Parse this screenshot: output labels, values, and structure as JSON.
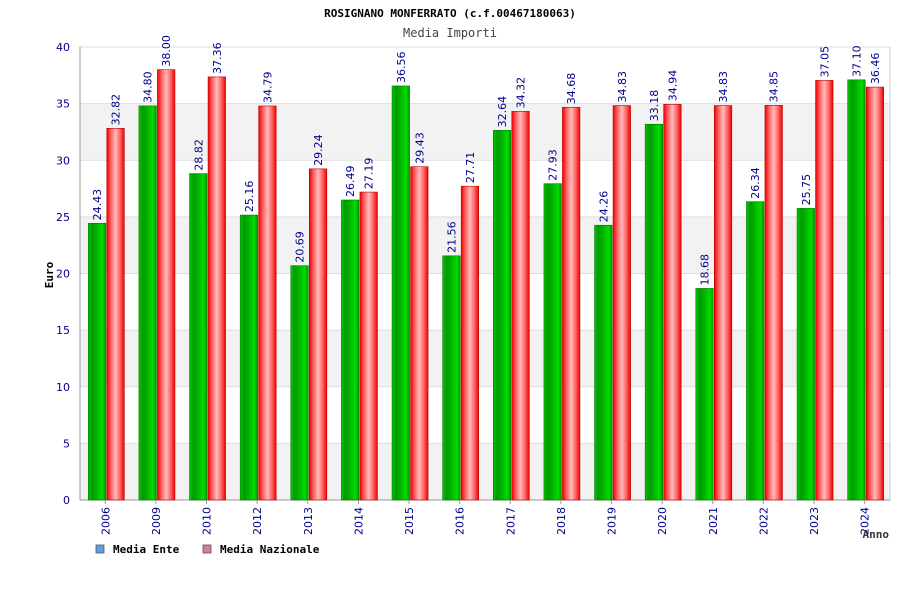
{
  "chart_data": {
    "type": "bar",
    "title": "ROSIGNANO MONFERRATO (c.f.00467180063)",
    "subtitle": "Media Importi",
    "xlabel": "Anno",
    "ylabel": "Euro",
    "ylim": [
      0,
      40
    ],
    "yticks": [
      0,
      5,
      10,
      15,
      20,
      25,
      30,
      35,
      40
    ],
    "grid": true,
    "legend_position": "bottom-left",
    "categories": [
      "2006",
      "2009",
      "2010",
      "2012",
      "2013",
      "2014",
      "2015",
      "2016",
      "2017",
      "2018",
      "2019",
      "2020",
      "2021",
      "2022",
      "2023",
      "2024"
    ],
    "series": [
      {
        "name": "Media Ente",
        "color": "#00aa00",
        "legend_color": "#5aa0e6",
        "values": [
          24.43,
          34.8,
          28.82,
          25.16,
          20.69,
          26.49,
          36.56,
          21.56,
          32.64,
          27.93,
          24.26,
          33.18,
          18.68,
          26.34,
          25.75,
          37.1
        ],
        "labels": [
          "24.43",
          "34.80",
          "28.82",
          "25.16",
          "20.69",
          "26.49",
          "36.56",
          "21.56",
          "32.64",
          "27.93",
          "24.26",
          "33.18",
          "18.68",
          "26.34",
          "25.75",
          "37.10"
        ]
      },
      {
        "name": "Media Nazionale",
        "color": "#ee1122",
        "legend_color": "#e07a9a",
        "values": [
          32.82,
          38.0,
          37.36,
          34.79,
          29.24,
          27.19,
          29.43,
          27.71,
          34.32,
          34.68,
          34.83,
          34.94,
          34.83,
          34.85,
          37.05,
          36.46
        ],
        "labels": [
          "32.82",
          "38.00",
          "37.36",
          "34.79",
          "29.24",
          "27.19",
          "29.43",
          "27.71",
          "34.32",
          "34.68",
          "34.83",
          "34.94",
          "34.83",
          "34.85",
          "37.05",
          "36.46"
        ]
      }
    ]
  }
}
